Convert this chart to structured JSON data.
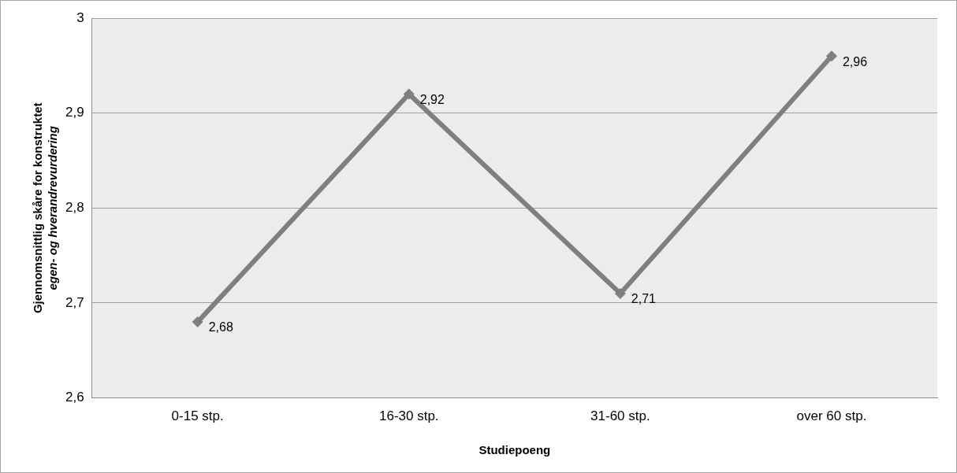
{
  "chart_data": {
    "type": "line",
    "xlabel": "Studiepoeng",
    "ylabel": "Gjennomsnittlig skåre for konstruktet\negen- og hverandrevurdering",
    "categories": [
      "0-15 stp.",
      "16-30 stp.",
      "31-60 stp.",
      "over 60 stp."
    ],
    "series": [
      {
        "color": "#7f7f7f",
        "values": [
          2.68,
          2.92,
          2.71,
          2.96
        ],
        "value_labels": [
          "2,68",
          "2,92",
          "2,71",
          "2,96"
        ]
      }
    ],
    "ylim": [
      2.6,
      3
    ],
    "yticks": [
      {
        "value": 2.6,
        "label": "2,6"
      },
      {
        "value": 2.7,
        "label": "2,7"
      },
      {
        "value": 2.8,
        "label": "2,8"
      },
      {
        "value": 2.9,
        "label": "2,9"
      },
      {
        "value": 3,
        "label": "3"
      }
    ],
    "grid": "y",
    "legend": false,
    "marker": "diamond",
    "line_style": "solid"
  }
}
